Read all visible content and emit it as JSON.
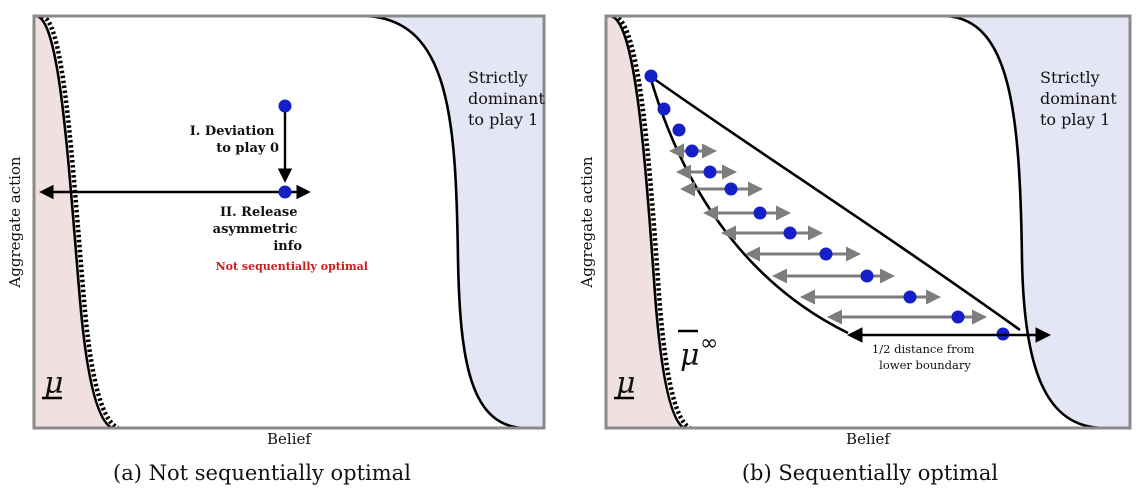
{
  "colors": {
    "left_region": "#f1e0e0",
    "right_region": "#e4e6f5",
    "dot": "#1520c8",
    "frame": "#8a8a8a",
    "curve": "#000000",
    "grey_arrow": "#7d7d7d",
    "red_text": "#cc1b1b"
  },
  "panel_a": {
    "xlabel": "Belief",
    "ylabel": "Aggregate action",
    "region_right": [
      "Strictly",
      "dominant",
      "to play 1"
    ],
    "deviation_label": [
      "I. Deviation",
      "to play 0"
    ],
    "release_label": [
      "II. Release",
      "asymmetric",
      "info"
    ],
    "red_note": "Not sequentially optimal",
    "mu_label": "μ",
    "caption": "(a) Not sequentially optimal"
  },
  "panel_b": {
    "xlabel": "Belief",
    "ylabel": "Aggregate action",
    "region_right": [
      "Strictly",
      "dominant",
      "to play 1"
    ],
    "mu_label": "μ",
    "mu_bar_label": "μ",
    "mu_bar_sup": "∞",
    "distance_label": [
      "1/2 distance from",
      "lower boundary"
    ],
    "caption": "(b) Sequentially optimal"
  }
}
